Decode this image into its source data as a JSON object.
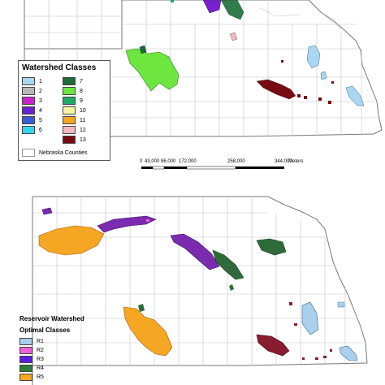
{
  "top_legend": {
    "title": "Watershed Classes",
    "counties_label": "Nebraska Counties",
    "classes": [
      {
        "label": "1",
        "color": "#a9d6f0"
      },
      {
        "label": "2",
        "color": "#b8b8b8"
      },
      {
        "label": "3",
        "color": "#cc22cc"
      },
      {
        "label": "4",
        "color": "#6a1fd0"
      },
      {
        "label": "5",
        "color": "#3b5bdb"
      },
      {
        "label": "6",
        "color": "#33d6ec"
      },
      {
        "label": "7",
        "color": "#1f6b3a"
      },
      {
        "label": "8",
        "color": "#6ee640"
      },
      {
        "label": "9",
        "color": "#1faa66"
      },
      {
        "label": "10",
        "color": "#f5f5a0"
      },
      {
        "label": "11",
        "color": "#f5a623"
      },
      {
        "label": "12",
        "color": "#f4b8c0"
      },
      {
        "label": "13",
        "color": "#7a0a12"
      }
    ]
  },
  "scale_bar": {
    "ticks": [
      "0",
      "43,000",
      "86,000",
      "172,000",
      "258,000",
      "344,000"
    ],
    "unit": "Meters"
  },
  "bottom_legend": {
    "title_line1": "Reservoir Watershed",
    "title_line2": "Optimal Classes",
    "classes": [
      {
        "label": "R1",
        "color": "#a9d0ec"
      },
      {
        "label": "R2",
        "color": "#f060d8"
      },
      {
        "label": "R3",
        "color": "#5b1fe0"
      },
      {
        "label": "R4",
        "color": "#2f7d3a"
      },
      {
        "label": "R5",
        "color": "#f5a623"
      }
    ]
  },
  "map_colors": {
    "county_line": "#bdbdbd",
    "state_outline": "#777777",
    "purple": "#7a2bb0",
    "dark_green": "#2f6b3a",
    "bright_green": "#6ee640",
    "orange": "#f5a623",
    "maroon": "#7a1a22",
    "light_blue": "#a9d0ec"
  }
}
